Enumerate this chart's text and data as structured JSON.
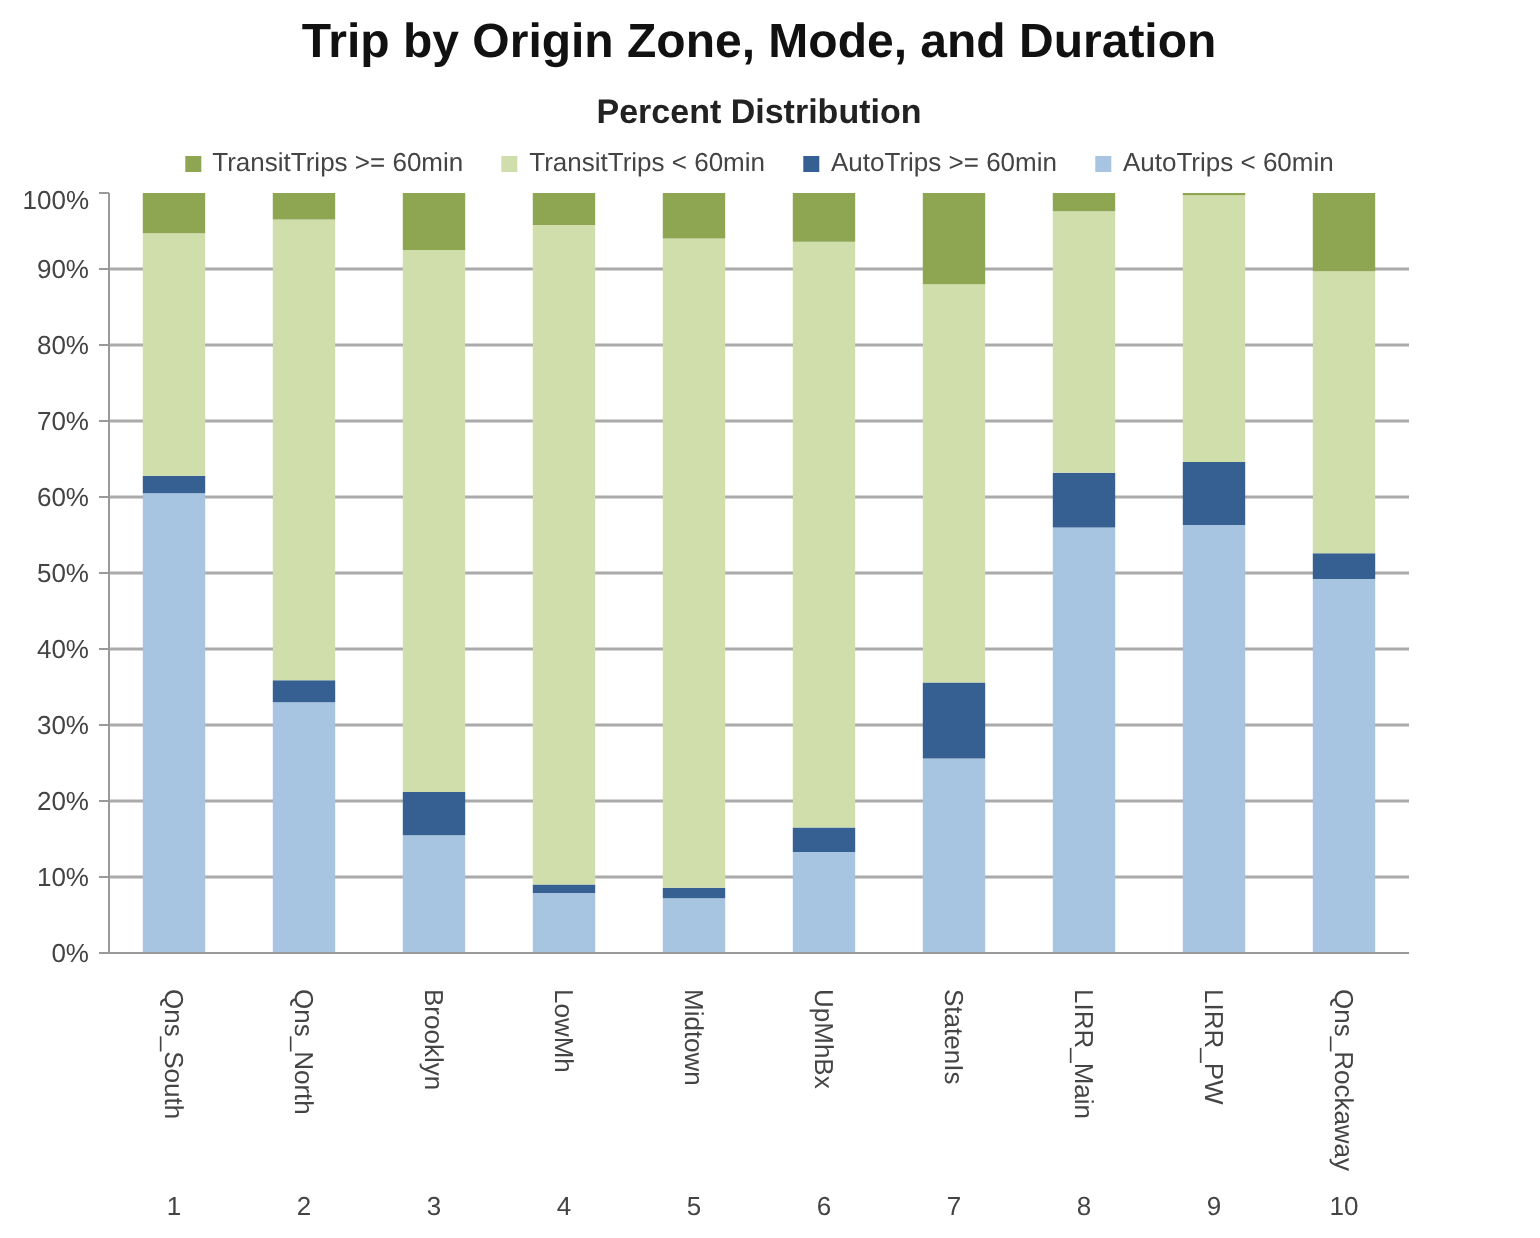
{
  "chart_data": {
    "type": "bar",
    "stacked": true,
    "title": "Trip by Origin Zone, Mode, and Duration",
    "subtitle": "Percent Distribution",
    "categories": [
      "Qns_South",
      "Qns_North",
      "Brooklyn",
      "LowMh",
      "Midtown",
      "UpMhBx",
      "StatenIs",
      "LIRR_Main",
      "LIRR_PW",
      "Qns_Rockaway"
    ],
    "series": [
      {
        "name": "AutoTrips < 60min",
        "color": "#a7c4e0",
        "values": [
          60.5,
          33.0,
          15.5,
          7.9,
          7.2,
          13.3,
          25.6,
          56.0,
          56.3,
          49.2
        ]
      },
      {
        "name": "AutoTrips >= 60min",
        "color": "#376092",
        "values": [
          2.3,
          2.9,
          5.7,
          1.1,
          1.4,
          3.2,
          10.0,
          7.2,
          8.3,
          3.4
        ]
      },
      {
        "name": "TransitTrips < 60min",
        "color": "#d0deab",
        "values": [
          31.9,
          60.6,
          71.3,
          86.8,
          85.4,
          77.1,
          52.4,
          34.4,
          35.1,
          37.1
        ]
      },
      {
        "name": "TransitTrips >= 60min",
        "color": "#8ea552",
        "values": [
          5.3,
          3.5,
          7.5,
          4.2,
          6.0,
          6.4,
          12.0,
          2.4,
          0.3,
          10.3
        ]
      }
    ],
    "ylim": [
      0,
      100
    ],
    "yticks": [
      {
        "value": 0,
        "label": "0%"
      },
      {
        "value": 10,
        "label": "10%"
      },
      {
        "value": 20,
        "label": "20%"
      },
      {
        "value": 30,
        "label": "30%"
      },
      {
        "value": 40,
        "label": "40%"
      },
      {
        "value": 50,
        "label": "50%"
      },
      {
        "value": 60,
        "label": "60%"
      },
      {
        "value": 70,
        "label": "70%"
      },
      {
        "value": 80,
        "label": "80%"
      },
      {
        "value": 90,
        "label": "90%"
      },
      {
        "value": 100,
        "label": "100%"
      }
    ],
    "grid": "y",
    "legend": "top",
    "annotations": [
      "1",
      "2",
      "3",
      "4",
      "5",
      "6",
      "7",
      "8",
      "9",
      "10"
    ]
  }
}
